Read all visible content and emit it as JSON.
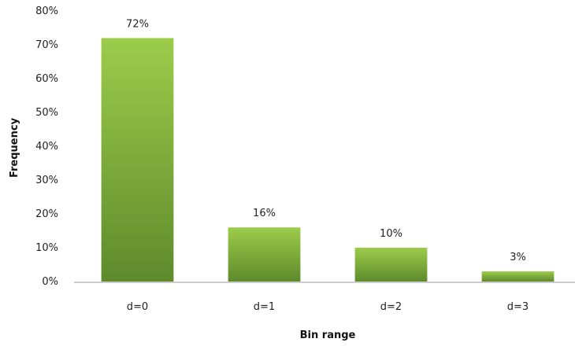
{
  "chart_data": {
    "type": "bar",
    "categories": [
      "d=0",
      "d=1",
      "d=2",
      "d=3"
    ],
    "values": [
      72,
      16,
      10,
      3
    ],
    "value_labels": [
      "72%",
      "16%",
      "10%",
      "3%"
    ],
    "title": "",
    "xlabel": "Bin range",
    "ylabel": "Frequency",
    "ylim": [
      0,
      80
    ],
    "yticks": [
      0,
      10,
      20,
      30,
      40,
      50,
      60,
      70,
      80
    ],
    "ytick_labels": [
      "0%",
      "10%",
      "20%",
      "30%",
      "40%",
      "50%",
      "60%",
      "70%",
      "80%"
    ],
    "grid": false,
    "legend": "none",
    "colors": {
      "bar_top": "#9ccc4a",
      "bar_bottom": "#5f8a2c",
      "axis": "#9a9a9a"
    }
  }
}
